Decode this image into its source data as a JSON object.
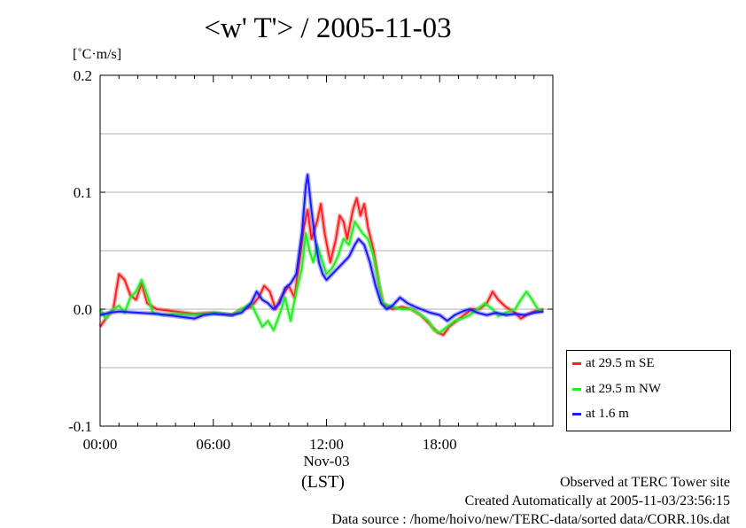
{
  "title": "<w' T'> / 2005-11-03",
  "ylabel": "[˚C·m/s]",
  "xlabel": "(LST)",
  "footer": {
    "line1": "Observed at TERC Tower site",
    "line2": "Created Automatically at 2005-11-03/23:56:15",
    "line3": "Data source : /home/hoivo/new/TERC-data/sorted  data/CORR.10s.dat"
  },
  "legend": [
    {
      "label": "at 29.5 m SE",
      "color": "#ff2020"
    },
    {
      "label": "at 29.5 m NW",
      "color": "#22ee22"
    },
    {
      "label": "at 1.6 m",
      "color": "#1a1aff"
    }
  ],
  "chart_data": {
    "type": "line",
    "xlim": [
      0,
      24
    ],
    "ylim": [
      -0.1,
      0.2
    ],
    "yticks": [
      -0.1,
      0.0,
      0.1,
      0.2
    ],
    "ytick_labels": [
      "-0.1",
      "0.0",
      "0.1",
      "0.2"
    ],
    "xticks": [
      0,
      6,
      12,
      18
    ],
    "xtick_labels": [
      "00:00",
      "06:00",
      "12:00",
      "18:00"
    ],
    "xtick_sublabel": "Nov-03",
    "grid": true,
    "legend_position": "right",
    "series": [
      {
        "name": "at 29.5 m SE",
        "color": "#ff2020",
        "points": [
          [
            0,
            -0.015
          ],
          [
            0.3,
            -0.008
          ],
          [
            0.7,
            0.0
          ],
          [
            1.0,
            0.03
          ],
          [
            1.3,
            0.025
          ],
          [
            1.6,
            0.012
          ],
          [
            1.9,
            0.008
          ],
          [
            2.2,
            0.022
          ],
          [
            2.5,
            0.005
          ],
          [
            3.0,
            0.0
          ],
          [
            4.0,
            -0.002
          ],
          [
            5.0,
            -0.004
          ],
          [
            6.0,
            -0.003
          ],
          [
            7.0,
            -0.005
          ],
          [
            7.5,
            0.0
          ],
          [
            8.0,
            0.002
          ],
          [
            8.4,
            0.01
          ],
          [
            8.7,
            0.02
          ],
          [
            9.0,
            0.015
          ],
          [
            9.3,
            0.0
          ],
          [
            9.6,
            0.01
          ],
          [
            10.0,
            0.02
          ],
          [
            10.3,
            0.01
          ],
          [
            10.6,
            0.045
          ],
          [
            10.8,
            0.07
          ],
          [
            11.0,
            0.085
          ],
          [
            11.2,
            0.06
          ],
          [
            11.5,
            0.075
          ],
          [
            11.7,
            0.09
          ],
          [
            11.9,
            0.065
          ],
          [
            12.2,
            0.04
          ],
          [
            12.5,
            0.06
          ],
          [
            12.7,
            0.08
          ],
          [
            12.9,
            0.075
          ],
          [
            13.1,
            0.06
          ],
          [
            13.4,
            0.085
          ],
          [
            13.6,
            0.095
          ],
          [
            13.8,
            0.08
          ],
          [
            14.0,
            0.09
          ],
          [
            14.2,
            0.07
          ],
          [
            14.5,
            0.05
          ],
          [
            14.8,
            0.02
          ],
          [
            15.0,
            0.005
          ],
          [
            15.5,
            0.0
          ],
          [
            16.0,
            0.002
          ],
          [
            16.5,
            0.0
          ],
          [
            17.0,
            -0.005
          ],
          [
            17.3,
            -0.01
          ],
          [
            17.6,
            -0.015
          ],
          [
            17.9,
            -0.02
          ],
          [
            18.2,
            -0.022
          ],
          [
            18.5,
            -0.015
          ],
          [
            18.9,
            -0.01
          ],
          [
            19.3,
            -0.005
          ],
          [
            19.7,
            0.0
          ],
          [
            20.1,
            0.0
          ],
          [
            20.5,
            0.005
          ],
          [
            20.8,
            0.015
          ],
          [
            21.1,
            0.008
          ],
          [
            21.5,
            0.002
          ],
          [
            22.0,
            -0.003
          ],
          [
            22.3,
            -0.008
          ],
          [
            22.6,
            -0.005
          ],
          [
            23.0,
            -0.002
          ],
          [
            23.5,
            0.0
          ]
        ]
      },
      {
        "name": "at 29.5 m NW",
        "color": "#22ee22",
        "points": [
          [
            0,
            0.0
          ],
          [
            0.3,
            -0.008
          ],
          [
            0.7,
            0.0
          ],
          [
            1.0,
            0.003
          ],
          [
            1.3,
            -0.003
          ],
          [
            1.6,
            0.01
          ],
          [
            1.9,
            0.015
          ],
          [
            2.2,
            0.025
          ],
          [
            2.5,
            0.012
          ],
          [
            2.8,
            -0.003
          ],
          [
            3.3,
            -0.005
          ],
          [
            4.0,
            -0.004
          ],
          [
            5.0,
            -0.005
          ],
          [
            6.0,
            -0.003
          ],
          [
            7.0,
            -0.005
          ],
          [
            7.5,
            0.0
          ],
          [
            8.0,
            0.005
          ],
          [
            8.3,
            -0.005
          ],
          [
            8.6,
            -0.015
          ],
          [
            8.9,
            -0.01
          ],
          [
            9.2,
            -0.018
          ],
          [
            9.5,
            -0.005
          ],
          [
            9.8,
            0.01
          ],
          [
            10.1,
            -0.01
          ],
          [
            10.4,
            0.015
          ],
          [
            10.7,
            0.035
          ],
          [
            10.9,
            0.065
          ],
          [
            11.1,
            0.05
          ],
          [
            11.3,
            0.04
          ],
          [
            11.5,
            0.055
          ],
          [
            11.7,
            0.045
          ],
          [
            12.0,
            0.03
          ],
          [
            12.3,
            0.035
          ],
          [
            12.6,
            0.045
          ],
          [
            12.9,
            0.06
          ],
          [
            13.2,
            0.055
          ],
          [
            13.5,
            0.075
          ],
          [
            13.7,
            0.07
          ],
          [
            13.9,
            0.065
          ],
          [
            14.2,
            0.06
          ],
          [
            14.5,
            0.045
          ],
          [
            14.8,
            0.02
          ],
          [
            15.0,
            0.005
          ],
          [
            15.5,
            0.002
          ],
          [
            16.0,
            0.0
          ],
          [
            16.5,
            0.0
          ],
          [
            17.0,
            -0.005
          ],
          [
            17.4,
            -0.01
          ],
          [
            17.7,
            -0.018
          ],
          [
            18.0,
            -0.02
          ],
          [
            18.4,
            -0.015
          ],
          [
            18.8,
            -0.01
          ],
          [
            19.2,
            -0.008
          ],
          [
            19.6,
            -0.005
          ],
          [
            20.0,
            0.0
          ],
          [
            20.4,
            0.005
          ],
          [
            20.8,
            0.0
          ],
          [
            21.1,
            -0.006
          ],
          [
            21.5,
            -0.003
          ],
          [
            22.0,
            0.0
          ],
          [
            22.3,
            0.008
          ],
          [
            22.6,
            0.015
          ],
          [
            22.9,
            0.008
          ],
          [
            23.2,
            0.0
          ],
          [
            23.5,
            -0.002
          ]
        ]
      },
      {
        "name": "at 1.6 m",
        "color": "#1a1aff",
        "points": [
          [
            0,
            -0.005
          ],
          [
            0.5,
            -0.003
          ],
          [
            1.0,
            -0.002
          ],
          [
            2.0,
            -0.003
          ],
          [
            3.0,
            -0.004
          ],
          [
            4.0,
            -0.006
          ],
          [
            5.0,
            -0.008
          ],
          [
            5.5,
            -0.005
          ],
          [
            6.0,
            -0.004
          ],
          [
            7.0,
            -0.005
          ],
          [
            7.5,
            -0.003
          ],
          [
            8.0,
            0.005
          ],
          [
            8.3,
            0.015
          ],
          [
            8.6,
            0.008
          ],
          [
            8.9,
            0.005
          ],
          [
            9.2,
            0.0
          ],
          [
            9.5,
            0.005
          ],
          [
            9.8,
            0.018
          ],
          [
            10.1,
            0.022
          ],
          [
            10.4,
            0.03
          ],
          [
            10.7,
            0.065
          ],
          [
            10.9,
            0.105
          ],
          [
            11.0,
            0.115
          ],
          [
            11.2,
            0.085
          ],
          [
            11.4,
            0.06
          ],
          [
            11.6,
            0.04
          ],
          [
            11.8,
            0.03
          ],
          [
            12.0,
            0.025
          ],
          [
            12.3,
            0.03
          ],
          [
            12.6,
            0.035
          ],
          [
            12.9,
            0.04
          ],
          [
            13.2,
            0.045
          ],
          [
            13.5,
            0.055
          ],
          [
            13.7,
            0.06
          ],
          [
            14.0,
            0.055
          ],
          [
            14.3,
            0.04
          ],
          [
            14.6,
            0.02
          ],
          [
            14.9,
            0.005
          ],
          [
            15.2,
            0.0
          ],
          [
            15.5,
            0.003
          ],
          [
            15.9,
            0.01
          ],
          [
            16.3,
            0.005
          ],
          [
            16.7,
            0.002
          ],
          [
            17.0,
            0.0
          ],
          [
            17.5,
            -0.003
          ],
          [
            18.0,
            -0.005
          ],
          [
            18.4,
            -0.01
          ],
          [
            18.8,
            -0.005
          ],
          [
            19.2,
            -0.002
          ],
          [
            19.6,
            0.0
          ],
          [
            20.0,
            -0.003
          ],
          [
            20.5,
            -0.005
          ],
          [
            21.0,
            -0.003
          ],
          [
            21.5,
            -0.005
          ],
          [
            22.0,
            -0.004
          ],
          [
            22.5,
            -0.005
          ],
          [
            23.0,
            -0.003
          ],
          [
            23.5,
            -0.002
          ]
        ]
      }
    ]
  }
}
